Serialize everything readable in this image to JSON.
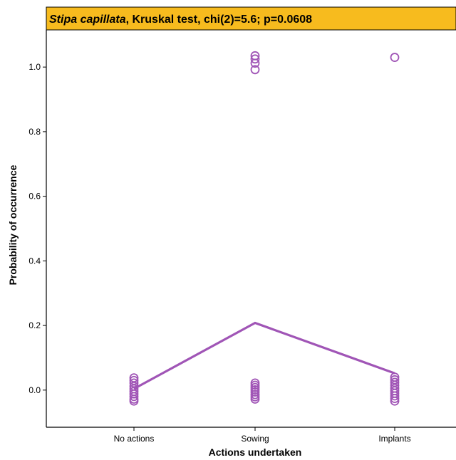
{
  "chart_data": {
    "type": "scatter",
    "title_species": "Stipa capillata",
    "title_rest": ", Kruskal test, chi(2)=5.6; p=0.0608",
    "xlabel": "Actions undertaken",
    "ylabel": "Probability of occurrence",
    "categories": [
      "No actions",
      "Sowing",
      "Implants"
    ],
    "y_ticks": [
      "0.0",
      "0.2",
      "0.4",
      "0.6",
      "0.8",
      "1.0"
    ],
    "ylim": [
      -0.115,
      1.115
    ],
    "grid": false,
    "legend": "none",
    "series": [
      {
        "kind": "points",
        "points": [
          {
            "category": "No actions",
            "values": [
              0.038,
              0.03,
              0.022,
              0.012,
              0.004,
              -0.004,
              -0.012,
              -0.02,
              -0.028,
              -0.034
            ]
          },
          {
            "category": "Sowing",
            "values": [
              1.035,
              1.025,
              1.012,
              0.992,
              0.022,
              0.015,
              0.008,
              0.001,
              -0.006,
              -0.014,
              -0.021,
              -0.028
            ]
          },
          {
            "category": "Implants",
            "values": [
              1.03,
              0.04,
              0.032,
              0.024,
              0.015,
              0.006,
              -0.002,
              -0.01,
              -0.018,
              -0.026,
              -0.034
            ]
          }
        ]
      },
      {
        "kind": "mean-line",
        "values": [
          0.004,
          0.208,
          0.052
        ]
      }
    ],
    "colors": {
      "marker": "#a055b6",
      "line": "#a055b6",
      "title_bg": "#f7bb1e",
      "axis": "#000000"
    }
  }
}
